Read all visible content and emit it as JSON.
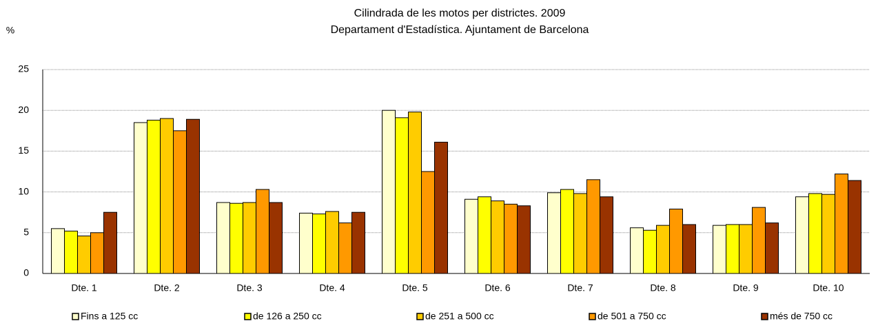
{
  "chart_data": {
    "type": "bar",
    "title": "Cilindrada de les motos per districtes. 2009",
    "subtitle": "Departament d'Estadística. Ajuntament de Barcelona",
    "y_label": "%",
    "categories": [
      "Dte. 1",
      "Dte. 2",
      "Dte. 3",
      "Dte. 4",
      "Dte. 5",
      "Dte. 6",
      "Dte. 7",
      "Dte. 8",
      "Dte. 9",
      "Dte. 10"
    ],
    "series": [
      {
        "name": "Fins a 125 cc",
        "color": "#FFFFCC",
        "values": [
          5.5,
          18.5,
          8.7,
          7.4,
          20.0,
          9.1,
          9.9,
          5.6,
          5.9,
          9.4
        ]
      },
      {
        "name": "de 126 a 250 cc",
        "color": "#FFFF00",
        "values": [
          5.2,
          18.8,
          8.6,
          7.3,
          19.1,
          9.4,
          10.3,
          5.3,
          6.0,
          9.8
        ]
      },
      {
        "name": "de 251 a 500 cc",
        "color": "#FFCC00",
        "values": [
          4.6,
          19.0,
          8.7,
          7.6,
          19.8,
          8.9,
          9.8,
          5.9,
          6.0,
          9.7
        ]
      },
      {
        "name": "de 501 a 750 cc",
        "color": "#FF9900",
        "values": [
          5.0,
          17.5,
          10.3,
          6.2,
          12.5,
          8.5,
          11.5,
          7.9,
          8.1,
          12.2
        ]
      },
      {
        "name": "més de 750 cc",
        "color": "#993300",
        "values": [
          7.5,
          18.9,
          8.7,
          7.5,
          16.1,
          8.3,
          9.4,
          6.0,
          6.2,
          11.4
        ]
      }
    ],
    "ylim": [
      0,
      25
    ],
    "yticks": [
      0,
      5,
      10,
      15,
      20,
      25
    ],
    "grid": true,
    "legend": "bottom"
  }
}
